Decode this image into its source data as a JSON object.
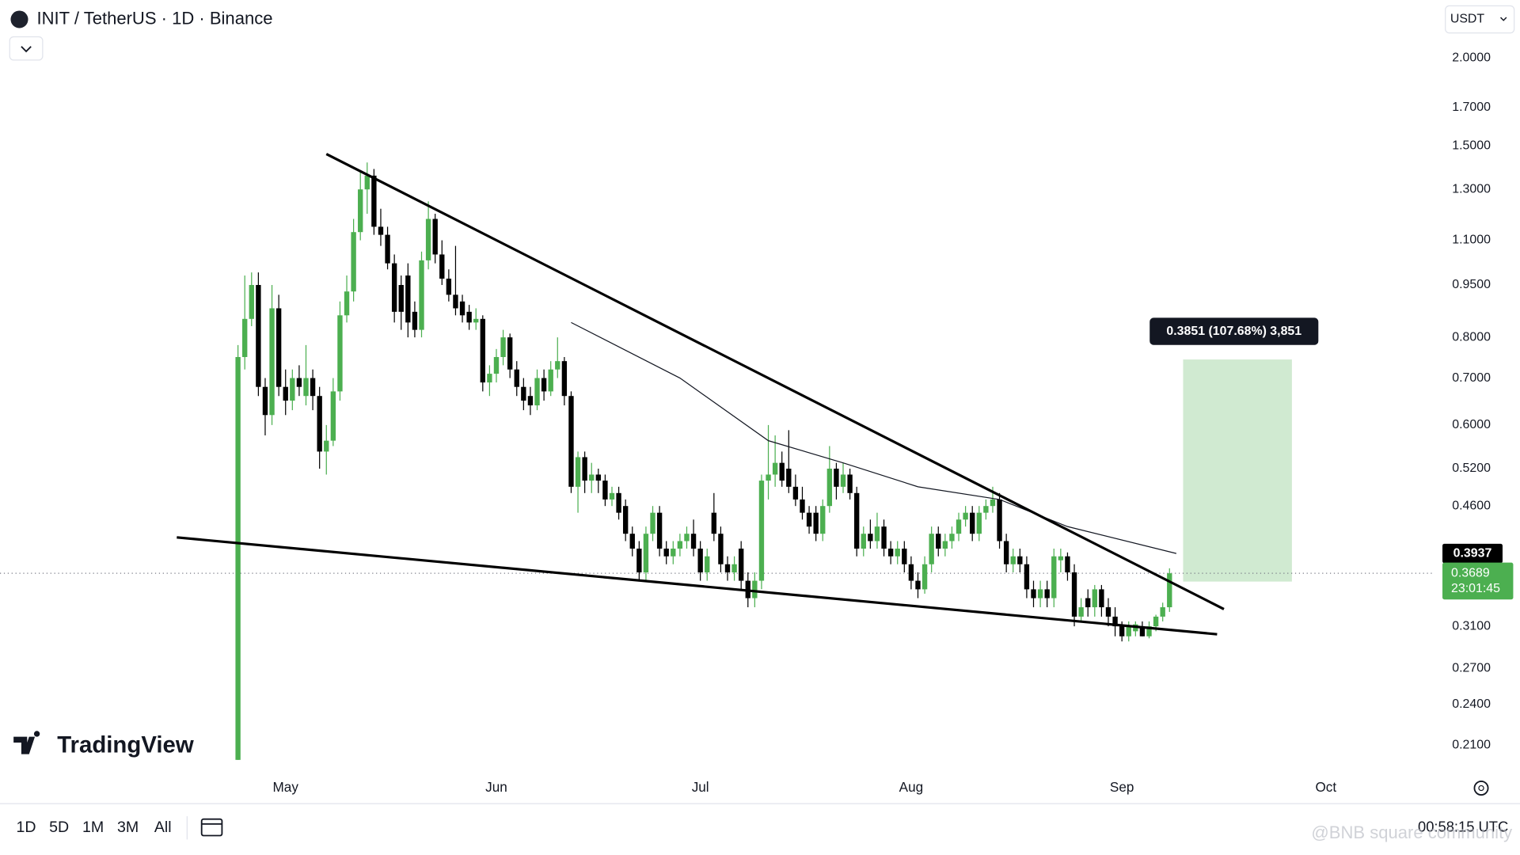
{
  "chart_data": {
    "type": "candlestick",
    "title": "INIT / TetherUS · 1D · Binance",
    "currency": "USDT",
    "countdown": "23:01:45",
    "ranges": [
      "1D",
      "5D",
      "1M",
      "3M",
      "All"
    ],
    "clock": "00:58:15 UTC",
    "brand": "TradingView",
    "watermark": "@BNB square community",
    "log_scale": true,
    "grid": false,
    "up_color": "#4caf50",
    "down_color": "#000000",
    "xlim": [
      -35,
      176
    ],
    "xticks": [
      {
        "value": 7,
        "label": "May"
      },
      {
        "value": 38,
        "label": "Jun"
      },
      {
        "value": 68,
        "label": "Jul"
      },
      {
        "value": 99,
        "label": "Aug"
      },
      {
        "value": 130,
        "label": "Sep"
      },
      {
        "value": 160,
        "label": "Oct"
      }
    ],
    "ylim": [
      0.19,
      2.42
    ],
    "yticks": [
      {
        "value": 2.0,
        "label": "2.0000"
      },
      {
        "value": 1.7,
        "label": "1.7000"
      },
      {
        "value": 1.5,
        "label": "1.5000"
      },
      {
        "value": 1.3,
        "label": "1.3000"
      },
      {
        "value": 1.1,
        "label": "1.1000"
      },
      {
        "value": 0.95,
        "label": "0.9500"
      },
      {
        "value": 0.8,
        "label": "0.8000"
      },
      {
        "value": 0.7,
        "label": "0.7000"
      },
      {
        "value": 0.6,
        "label": "0.6000"
      },
      {
        "value": 0.52,
        "label": "0.5200"
      },
      {
        "value": 0.46,
        "label": "0.4600"
      },
      {
        "value": 0.31,
        "label": "0.3100"
      },
      {
        "value": 0.27,
        "label": "0.2700"
      },
      {
        "value": 0.24,
        "label": "0.2400"
      },
      {
        "value": 0.21,
        "label": "0.2100"
      }
    ],
    "x": [
      0,
      1,
      2,
      3,
      4,
      5,
      6,
      7,
      8,
      9,
      10,
      11,
      12,
      13,
      14,
      15,
      16,
      17,
      18,
      19,
      20,
      21,
      22,
      23,
      24,
      25,
      26,
      27,
      28,
      29,
      30,
      31,
      32,
      33,
      34,
      35,
      36,
      37,
      38,
      39,
      40,
      41,
      42,
      43,
      44,
      45,
      46,
      47,
      48,
      49,
      50,
      51,
      52,
      53,
      54,
      55,
      56,
      57,
      58,
      59,
      60,
      61,
      62,
      63,
      64,
      65,
      66,
      67,
      68,
      69,
      70,
      71,
      72,
      73,
      74,
      75,
      76,
      77,
      78,
      79,
      80,
      81,
      82,
      83,
      84,
      85,
      86,
      87,
      88,
      89,
      90,
      91,
      92,
      93,
      94,
      95,
      96,
      97,
      98,
      99,
      100,
      101,
      102,
      103,
      104,
      105,
      106,
      107,
      108,
      109,
      110,
      111,
      112,
      113,
      114,
      115,
      116,
      117,
      118,
      119,
      120,
      121,
      122,
      123,
      124,
      125,
      126,
      127,
      128,
      129,
      130,
      131,
      132,
      133,
      134,
      135,
      136,
      137
    ],
    "candles": [
      [
        0.2,
        0.78,
        0.2,
        0.75
      ],
      [
        0.75,
        0.98,
        0.72,
        0.85
      ],
      [
        0.85,
        0.99,
        0.83,
        0.95
      ],
      [
        0.95,
        0.99,
        0.66,
        0.68
      ],
      [
        0.68,
        0.7,
        0.58,
        0.62
      ],
      [
        0.62,
        0.95,
        0.6,
        0.88
      ],
      [
        0.88,
        0.92,
        0.66,
        0.68
      ],
      [
        0.68,
        0.72,
        0.62,
        0.65
      ],
      [
        0.65,
        0.72,
        0.63,
        0.7
      ],
      [
        0.7,
        0.73,
        0.66,
        0.68
      ],
      [
        0.66,
        0.78,
        0.64,
        0.7
      ],
      [
        0.7,
        0.72,
        0.63,
        0.66
      ],
      [
        0.66,
        0.68,
        0.52,
        0.55
      ],
      [
        0.55,
        0.6,
        0.51,
        0.57
      ],
      [
        0.57,
        0.7,
        0.56,
        0.67
      ],
      [
        0.67,
        0.9,
        0.65,
        0.86
      ],
      [
        0.86,
        0.98,
        0.84,
        0.93
      ],
      [
        0.93,
        1.18,
        0.9,
        1.13
      ],
      [
        1.13,
        1.38,
        1.1,
        1.3
      ],
      [
        1.3,
        1.42,
        1.2,
        1.36
      ],
      [
        1.36,
        1.39,
        1.12,
        1.15
      ],
      [
        1.15,
        1.22,
        1.08,
        1.12
      ],
      [
        1.12,
        1.15,
        1.0,
        1.02
      ],
      [
        1.02,
        1.05,
        0.84,
        0.87
      ],
      [
        0.95,
        0.98,
        0.82,
        0.87
      ],
      [
        0.98,
        1.02,
        0.8,
        0.84
      ],
      [
        0.87,
        0.9,
        0.8,
        0.82
      ],
      [
        0.82,
        1.06,
        0.8,
        1.03
      ],
      [
        1.03,
        1.25,
        1.0,
        1.18
      ],
      [
        1.18,
        1.2,
        1.02,
        1.05
      ],
      [
        1.05,
        1.1,
        0.95,
        0.97
      ],
      [
        0.97,
        1.0,
        0.9,
        0.92
      ],
      [
        0.92,
        1.08,
        0.86,
        0.88
      ],
      [
        0.9,
        0.92,
        0.84,
        0.86
      ],
      [
        0.87,
        0.89,
        0.82,
        0.84
      ],
      [
        0.84,
        0.88,
        0.82,
        0.85
      ],
      [
        0.85,
        0.86,
        0.67,
        0.69
      ],
      [
        0.69,
        0.73,
        0.66,
        0.71
      ],
      [
        0.71,
        0.77,
        0.69,
        0.75
      ],
      [
        0.75,
        0.82,
        0.73,
        0.8
      ],
      [
        0.8,
        0.81,
        0.7,
        0.72
      ],
      [
        0.72,
        0.74,
        0.66,
        0.68
      ],
      [
        0.68,
        0.7,
        0.63,
        0.65
      ],
      [
        0.66,
        0.68,
        0.62,
        0.64
      ],
      [
        0.64,
        0.72,
        0.63,
        0.7
      ],
      [
        0.7,
        0.72,
        0.65,
        0.67
      ],
      [
        0.67,
        0.74,
        0.66,
        0.72
      ],
      [
        0.72,
        0.8,
        0.7,
        0.74
      ],
      [
        0.74,
        0.75,
        0.64,
        0.66
      ],
      [
        0.66,
        0.67,
        0.48,
        0.49
      ],
      [
        0.49,
        0.55,
        0.45,
        0.54
      ],
      [
        0.54,
        0.55,
        0.48,
        0.5
      ],
      [
        0.5,
        0.53,
        0.48,
        0.51
      ],
      [
        0.51,
        0.52,
        0.48,
        0.5
      ],
      [
        0.5,
        0.51,
        0.46,
        0.47
      ],
      [
        0.47,
        0.49,
        0.46,
        0.48
      ],
      [
        0.48,
        0.49,
        0.44,
        0.45
      ],
      [
        0.46,
        0.47,
        0.41,
        0.42
      ],
      [
        0.42,
        0.43,
        0.39,
        0.4
      ],
      [
        0.4,
        0.41,
        0.36,
        0.37
      ],
      [
        0.37,
        0.43,
        0.36,
        0.42
      ],
      [
        0.42,
        0.46,
        0.41,
        0.45
      ],
      [
        0.45,
        0.46,
        0.39,
        0.4
      ],
      [
        0.4,
        0.41,
        0.38,
        0.39
      ],
      [
        0.39,
        0.41,
        0.38,
        0.4
      ],
      [
        0.4,
        0.42,
        0.39,
        0.41
      ],
      [
        0.41,
        0.43,
        0.4,
        0.42
      ],
      [
        0.42,
        0.44,
        0.39,
        0.4
      ],
      [
        0.4,
        0.41,
        0.36,
        0.37
      ],
      [
        0.37,
        0.4,
        0.36,
        0.39
      ],
      [
        0.45,
        0.48,
        0.41,
        0.42
      ],
      [
        0.42,
        0.43,
        0.37,
        0.38
      ],
      [
        0.38,
        0.39,
        0.36,
        0.37
      ],
      [
        0.37,
        0.39,
        0.36,
        0.38
      ],
      [
        0.4,
        0.41,
        0.35,
        0.36
      ],
      [
        0.36,
        0.37,
        0.33,
        0.34
      ],
      [
        0.34,
        0.37,
        0.33,
        0.36
      ],
      [
        0.36,
        0.51,
        0.35,
        0.5
      ],
      [
        0.5,
        0.6,
        0.47,
        0.51
      ],
      [
        0.51,
        0.58,
        0.49,
        0.53
      ],
      [
        0.53,
        0.55,
        0.49,
        0.5
      ],
      [
        0.52,
        0.59,
        0.48,
        0.49
      ],
      [
        0.49,
        0.51,
        0.46,
        0.47
      ],
      [
        0.47,
        0.49,
        0.44,
        0.45
      ],
      [
        0.45,
        0.46,
        0.42,
        0.43
      ],
      [
        0.45,
        0.46,
        0.41,
        0.42
      ],
      [
        0.42,
        0.47,
        0.41,
        0.46
      ],
      [
        0.46,
        0.56,
        0.45,
        0.52
      ],
      [
        0.52,
        0.53,
        0.47,
        0.49
      ],
      [
        0.49,
        0.53,
        0.48,
        0.51
      ],
      [
        0.51,
        0.52,
        0.47,
        0.48
      ],
      [
        0.48,
        0.49,
        0.39,
        0.4
      ],
      [
        0.4,
        0.43,
        0.39,
        0.42
      ],
      [
        0.42,
        0.44,
        0.4,
        0.41
      ],
      [
        0.41,
        0.45,
        0.4,
        0.43
      ],
      [
        0.43,
        0.44,
        0.39,
        0.4
      ],
      [
        0.4,
        0.41,
        0.38,
        0.39
      ],
      [
        0.39,
        0.41,
        0.38,
        0.4
      ],
      [
        0.4,
        0.41,
        0.37,
        0.38
      ],
      [
        0.38,
        0.39,
        0.35,
        0.36
      ],
      [
        0.36,
        0.37,
        0.34,
        0.35
      ],
      [
        0.35,
        0.39,
        0.345,
        0.38
      ],
      [
        0.38,
        0.43,
        0.37,
        0.42
      ],
      [
        0.42,
        0.43,
        0.39,
        0.4
      ],
      [
        0.4,
        0.42,
        0.39,
        0.41
      ],
      [
        0.41,
        0.43,
        0.4,
        0.42
      ],
      [
        0.42,
        0.45,
        0.41,
        0.44
      ],
      [
        0.44,
        0.46,
        0.43,
        0.45
      ],
      [
        0.45,
        0.46,
        0.41,
        0.42
      ],
      [
        0.42,
        0.46,
        0.41,
        0.45
      ],
      [
        0.45,
        0.47,
        0.44,
        0.46
      ],
      [
        0.46,
        0.49,
        0.45,
        0.47
      ],
      [
        0.47,
        0.48,
        0.4,
        0.41
      ],
      [
        0.41,
        0.42,
        0.37,
        0.38
      ],
      [
        0.38,
        0.4,
        0.37,
        0.39
      ],
      [
        0.39,
        0.4,
        0.37,
        0.38
      ],
      [
        0.38,
        0.39,
        0.34,
        0.35
      ],
      [
        0.35,
        0.36,
        0.33,
        0.34
      ],
      [
        0.34,
        0.36,
        0.33,
        0.35
      ],
      [
        0.35,
        0.36,
        0.33,
        0.34
      ],
      [
        0.34,
        0.4,
        0.33,
        0.39
      ],
      [
        0.385,
        0.4,
        0.37,
        0.39
      ],
      [
        0.39,
        0.395,
        0.36,
        0.37
      ],
      [
        0.37,
        0.38,
        0.31,
        0.32
      ],
      [
        0.32,
        0.34,
        0.315,
        0.33
      ],
      [
        0.34,
        0.35,
        0.32,
        0.33
      ],
      [
        0.33,
        0.355,
        0.32,
        0.35
      ],
      [
        0.35,
        0.355,
        0.32,
        0.33
      ],
      [
        0.33,
        0.34,
        0.31,
        0.32
      ],
      [
        0.32,
        0.33,
        0.3,
        0.31
      ],
      [
        0.31,
        0.315,
        0.295,
        0.3
      ],
      [
        0.3,
        0.315,
        0.295,
        0.31
      ],
      [
        0.305,
        0.315,
        0.3,
        0.312
      ],
      [
        0.31,
        0.315,
        0.3,
        0.3
      ],
      [
        0.3,
        0.315,
        0.298,
        0.31
      ],
      [
        0.31,
        0.322,
        0.305,
        0.32
      ],
      [
        0.32,
        0.335,
        0.315,
        0.33
      ],
      [
        0.33,
        0.375,
        0.325,
        0.3689
      ]
    ],
    "moving_average": {
      "x": [
        49,
        65,
        78,
        89,
        100,
        112,
        122,
        138
      ],
      "values": [
        0.84,
        0.7,
        0.57,
        0.53,
        0.49,
        0.47,
        0.43,
        0.3937
      ]
    },
    "trendlines": [
      {
        "x": [
          13,
          145
        ],
        "values": [
          1.46,
          0.328
        ]
      },
      {
        "x": [
          -9,
          144
        ],
        "values": [
          0.415,
          0.302
        ]
      }
    ],
    "target_box": {
      "x": [
        139,
        155
      ],
      "values": [
        0.359,
        0.744
      ],
      "label": "0.3851 (107.68%) 3,851"
    }
  }
}
